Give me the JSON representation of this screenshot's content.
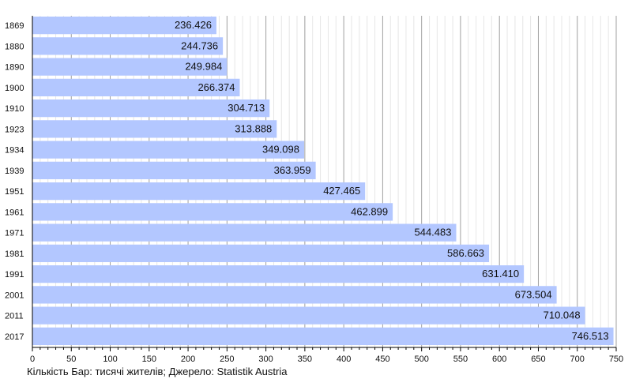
{
  "chart_data": {
    "type": "bar",
    "orientation": "horizontal",
    "categories": [
      "1869",
      "1880",
      "1890",
      "1900",
      "1910",
      "1923",
      "1934",
      "1939",
      "1951",
      "1961",
      "1971",
      "1981",
      "1991",
      "2001",
      "2011",
      "2017"
    ],
    "values": [
      236.426,
      244.736,
      249.984,
      266.374,
      304.713,
      313.888,
      349.098,
      363.959,
      427.465,
      462.899,
      544.483,
      586.663,
      631.41,
      673.504,
      710.048,
      746.513
    ],
    "value_labels": [
      "236.426",
      "244.736",
      "249.984",
      "266.374",
      "304.713",
      "313.888",
      "349.098",
      "363.959",
      "427.465",
      "462.899",
      "544.483",
      "586.663",
      "631.410",
      "673.504",
      "710.048",
      "746.513"
    ],
    "xlim": [
      0,
      750
    ],
    "xticks": [
      0,
      50,
      100,
      150,
      200,
      250,
      300,
      350,
      400,
      450,
      500,
      550,
      600,
      650,
      700,
      750
    ],
    "grid": true,
    "bar_color": "#b3c7ff",
    "caption": "Кількість Бар: тисячі жителів; Джерело: Statistik Austria"
  }
}
